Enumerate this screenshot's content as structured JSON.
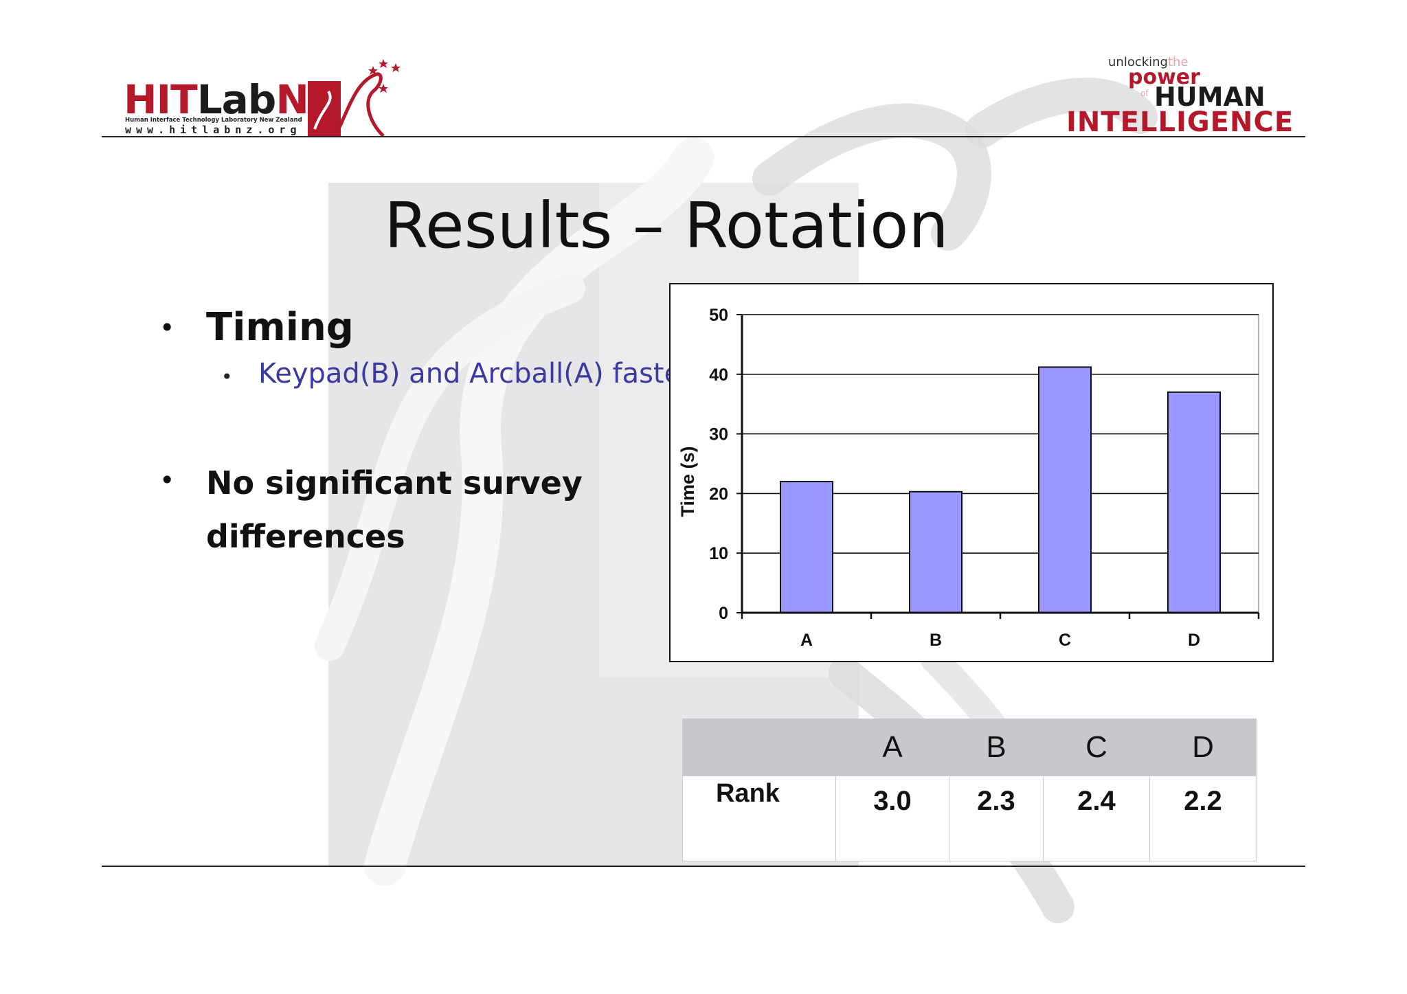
{
  "logo_left": {
    "brand_red1": "HIT",
    "brand_black": "Lab",
    "brand_red2": "NZ",
    "subtitle": "Human Interface Technology Laboratory New Zealand",
    "url": "www.hitlabnz.org"
  },
  "logo_right": {
    "unlocking": "unlocking",
    "the": "the",
    "power": "power",
    "of": "of",
    "human": "HUMAN",
    "intelligence": "INTELLIGENCE"
  },
  "title": "Results – Rotation",
  "bullets": {
    "timing": "Timing",
    "timing_sub": "Keypad(B) and Arcball(A) fastest",
    "survey": "No significant  survey differences"
  },
  "colors": {
    "bar_fill": "#9999ff",
    "brand_red": "#b5182b",
    "sub_bullet": "#3a3aa0"
  },
  "chart_data": {
    "type": "bar",
    "categories": [
      "A",
      "B",
      "C",
      "D"
    ],
    "values": [
      22,
      20.3,
      41.2,
      37
    ],
    "title": "",
    "xlabel": "",
    "ylabel": "Time (s)",
    "ylim": [
      0,
      50
    ],
    "yticks": [
      0,
      10,
      20,
      30,
      40,
      50
    ],
    "grid": true,
    "legend": "none"
  },
  "rank_table": {
    "headers": [
      "",
      "A",
      "B",
      "C",
      "D"
    ],
    "row_label": "Rank",
    "values": [
      "3.0",
      "2.3",
      "2.4",
      "2.2"
    ]
  }
}
